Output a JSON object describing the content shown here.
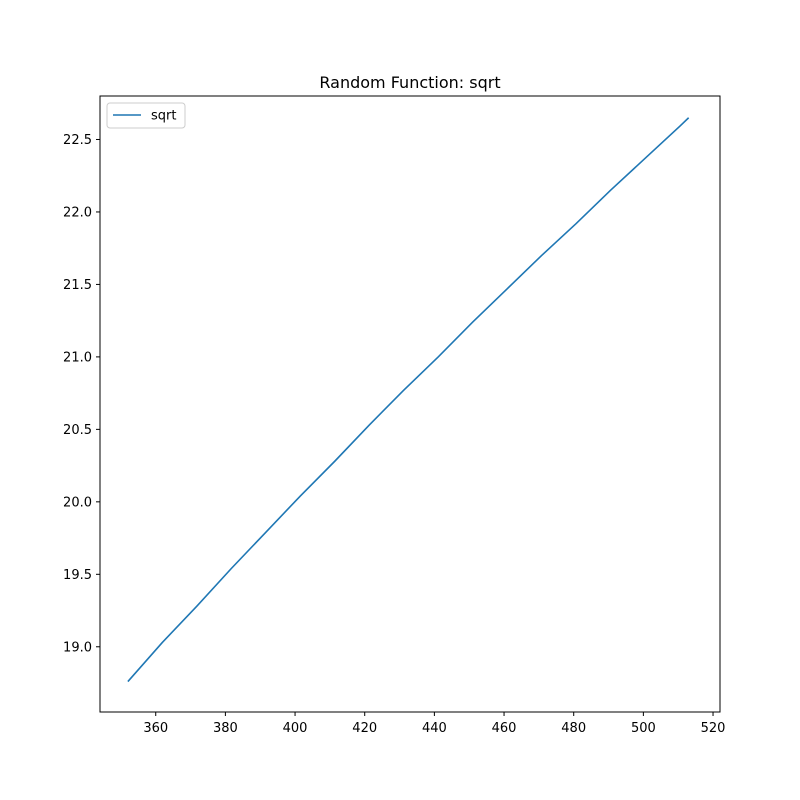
{
  "chart_data": {
    "type": "line",
    "title": "Random Function: sqrt",
    "xlabel": "",
    "ylabel": "",
    "xlim": [
      344,
      522
    ],
    "ylim": [
      18.55,
      22.8
    ],
    "x_ticks": [
      360,
      380,
      400,
      420,
      440,
      460,
      480,
      500,
      520
    ],
    "x_tick_labels": [
      "360",
      "380",
      "400",
      "420",
      "440",
      "460",
      "480",
      "500",
      "520"
    ],
    "y_ticks": [
      19.0,
      19.5,
      20.0,
      20.5,
      21.0,
      21.5,
      22.0,
      22.5
    ],
    "y_tick_labels": [
      "19.0",
      "19.5",
      "20.0",
      "20.5",
      "21.0",
      "21.5",
      "22.0",
      "22.5"
    ],
    "grid": false,
    "legend_position": "top-left",
    "series": [
      {
        "name": "sqrt",
        "color": "#1f77b4",
        "x": [
          352,
          361.9,
          371.8,
          381.7,
          391.6,
          401.5,
          411.4,
          421.3,
          431.2,
          441.1,
          451.0,
          460.9,
          470.8,
          480.7,
          490.6,
          500.5,
          510.4,
          513.0
        ],
        "y": [
          18.76,
          19.03,
          19.28,
          19.54,
          19.79,
          20.04,
          20.28,
          20.53,
          20.77,
          21.0,
          21.24,
          21.47,
          21.7,
          21.92,
          22.15,
          22.37,
          22.59,
          22.65
        ]
      }
    ]
  }
}
